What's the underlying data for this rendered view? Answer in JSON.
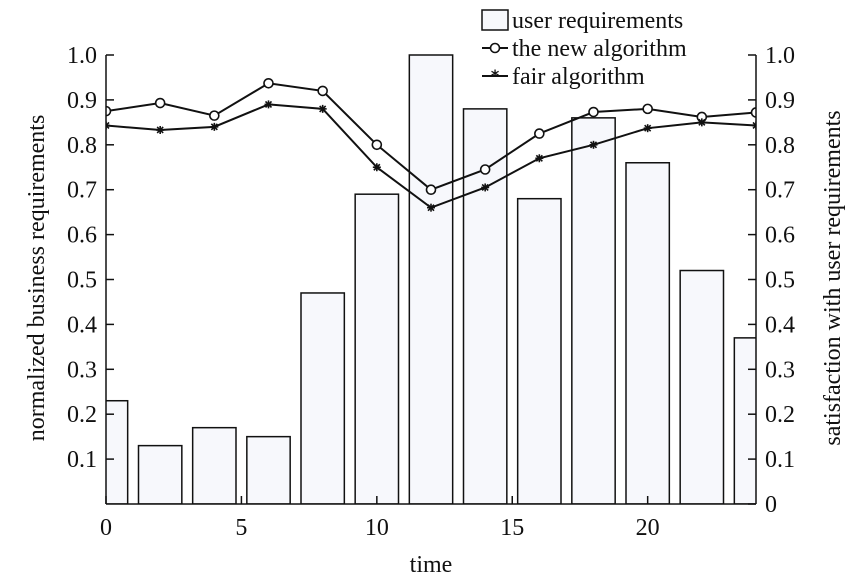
{
  "chart_data": {
    "type": "bar+line",
    "title": "",
    "xlabel": "time",
    "ylabel_left": "normalized business requirements",
    "ylabel_right": "satisfaction with user requirements",
    "xlim": [
      0,
      24
    ],
    "ylim_left": [
      0,
      1.0
    ],
    "ylim_right": [
      0,
      1.0
    ],
    "x_ticks": [
      "0",
      "5",
      "10",
      "15",
      "20"
    ],
    "x_tick_values": [
      0,
      5,
      10,
      15,
      20
    ],
    "y_left_ticks": [
      "0.1",
      "0.2",
      "0.3",
      "0.4",
      "0.5",
      "0.6",
      "0.7",
      "0.8",
      "0.9",
      "1.0"
    ],
    "y_left_tick_values": [
      0.1,
      0.2,
      0.3,
      0.4,
      0.5,
      0.6,
      0.7,
      0.8,
      0.9,
      1.0
    ],
    "y_right_ticks": [
      "0",
      "0.1",
      "0.2",
      "0.3",
      "0.4",
      "0.5",
      "0.6",
      "0.7",
      "0.8",
      "0.9",
      "1.0"
    ],
    "y_right_tick_values": [
      0,
      0.1,
      0.2,
      0.3,
      0.4,
      0.5,
      0.6,
      0.7,
      0.8,
      0.9,
      1.0
    ],
    "grid": false,
    "legend_position": "top-right",
    "bars": {
      "name": "user requirements",
      "x": [
        0,
        2,
        4,
        6,
        8,
        10,
        12,
        14,
        16,
        18,
        20,
        22,
        24
      ],
      "values": [
        0.23,
        0.13,
        0.17,
        0.15,
        0.47,
        0.69,
        1.0,
        0.88,
        0.68,
        0.86,
        0.76,
        0.52,
        0.37
      ],
      "fill": "#f7f8fc",
      "stroke": "#111111"
    },
    "series": [
      {
        "name": "the new algorithm",
        "marker": "circle",
        "color": "#111111",
        "x": [
          0,
          2,
          4,
          6,
          8,
          10,
          12,
          14,
          16,
          18,
          20,
          22,
          24
        ],
        "values": [
          0.875,
          0.893,
          0.865,
          0.937,
          0.92,
          0.8,
          0.7,
          0.745,
          0.825,
          0.873,
          0.88,
          0.862,
          0.872
        ]
      },
      {
        "name": "fair algorithm",
        "marker": "star",
        "color": "#111111",
        "x": [
          0,
          2,
          4,
          6,
          8,
          10,
          12,
          14,
          16,
          18,
          20,
          22,
          24
        ],
        "values": [
          0.843,
          0.833,
          0.84,
          0.89,
          0.88,
          0.75,
          0.66,
          0.705,
          0.77,
          0.8,
          0.837,
          0.85,
          0.843
        ]
      }
    ]
  }
}
